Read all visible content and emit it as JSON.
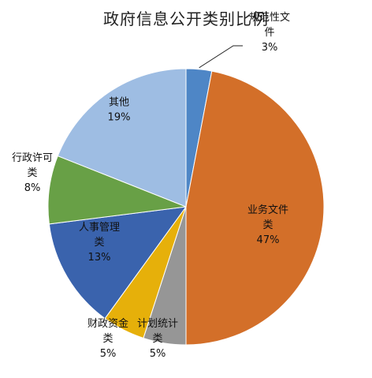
{
  "chart_data": {
    "type": "pie",
    "title": "政府信息公开类别比例",
    "categories": [
      "规范性文件",
      "业务文件类",
      "计划统计类",
      "财政资金类",
      "人事管理类",
      "行政许可类",
      "其他"
    ],
    "values": [
      3,
      47,
      5,
      5,
      13,
      8,
      19
    ],
    "labels": [
      {
        "name_lines": [
          "规范性文",
          "件"
        ],
        "percent": "3%"
      },
      {
        "name_lines": [
          "业务文件",
          "类"
        ],
        "percent": "47%"
      },
      {
        "name_lines": [
          "计划统计",
          "类"
        ],
        "percent": "5%"
      },
      {
        "name_lines": [
          "财政资金",
          "类"
        ],
        "percent": "5%"
      },
      {
        "name_lines": [
          "人事管理",
          "类"
        ],
        "percent": "13%"
      },
      {
        "name_lines": [
          "行政许可",
          "类"
        ],
        "percent": "8%"
      },
      {
        "name_lines": [
          "其他"
        ],
        "percent": "19%"
      }
    ],
    "colors": [
      "#4e86c6",
      "#d36f29",
      "#969696",
      "#e6b00a",
      "#3a63ad",
      "#68a046",
      "#9ebde3"
    ],
    "legend": "none"
  }
}
